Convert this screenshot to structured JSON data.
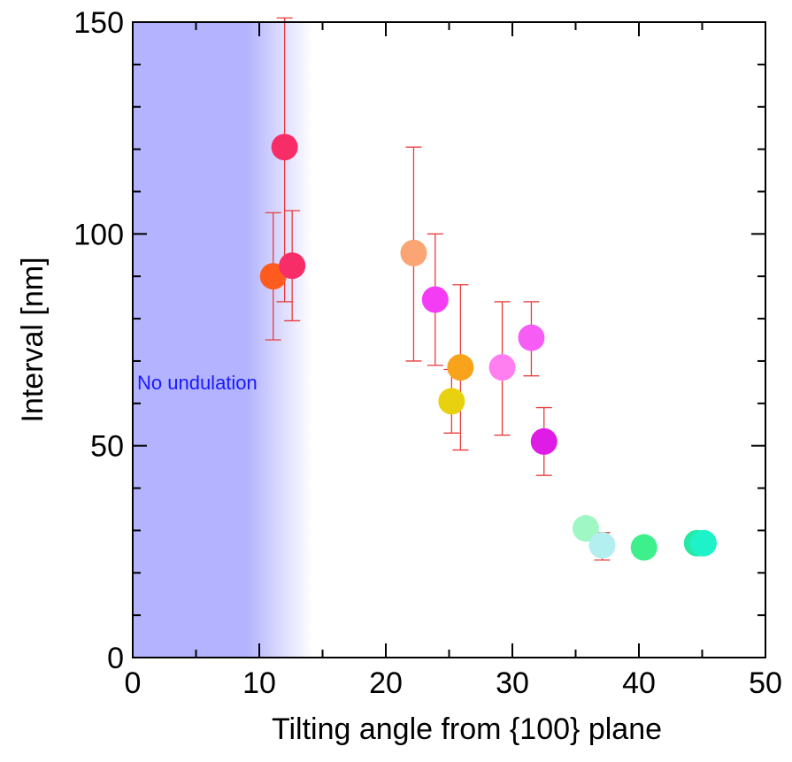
{
  "chart_data": {
    "type": "scatter",
    "title": "",
    "xlabel": "Tilting angle from {100} plane",
    "ylabel": "Interval   [nm]",
    "xlim": [
      0,
      50
    ],
    "ylim": [
      0,
      150
    ],
    "x_ticks": [
      0,
      10,
      20,
      30,
      40,
      50
    ],
    "y_ticks": [
      0,
      50,
      100,
      150
    ],
    "x_minor_step": 5,
    "y_minor_step": 10,
    "grid": false,
    "shaded_region": {
      "x_start": 0,
      "x_solid_end": 9,
      "x_fade_end": 14.2,
      "color": "#b3b3ff",
      "label": "No undulation",
      "label_color": "#1a1aff"
    },
    "error_bar_color": "#e83c3c",
    "points": [
      {
        "x": 11.1,
        "y": 90,
        "y_low": 75,
        "y_high": 105,
        "color": "#ff5b1e"
      },
      {
        "x": 12.0,
        "y": 120.5,
        "y_low": 84,
        "y_high": 151,
        "color": "#f72d68"
      },
      {
        "x": 12.6,
        "y": 92.5,
        "y_low": 79.5,
        "y_high": 105.5,
        "color": "#f72d68"
      },
      {
        "x": 22.2,
        "y": 95.5,
        "y_low": 70,
        "y_high": 120.5,
        "color": "#fba474"
      },
      {
        "x": 23.9,
        "y": 84.5,
        "y_low": 69,
        "y_high": 100,
        "color": "#f53cf5"
      },
      {
        "x": 25.2,
        "y": 60.5,
        "y_low": 53,
        "y_high": 68,
        "color": "#e8d20f"
      },
      {
        "x": 25.9,
        "y": 68.5,
        "y_low": 49,
        "y_high": 88,
        "color": "#f9a21c"
      },
      {
        "x": 29.2,
        "y": 68.5,
        "y_low": 52.5,
        "y_high": 84,
        "color": "#ff7ff0"
      },
      {
        "x": 31.5,
        "y": 75.5,
        "y_low": 66.5,
        "y_high": 84,
        "color": "#f55df5"
      },
      {
        "x": 32.5,
        "y": 51,
        "y_low": 43,
        "y_high": 59,
        "color": "#df1be6"
      },
      {
        "x": 35.8,
        "y": 30.5,
        "y_low": null,
        "y_high": null,
        "color": "#9ff7c3"
      },
      {
        "x": 37.1,
        "y": 26.5,
        "y_low": 23,
        "y_high": 29.5,
        "color": "#b3eef0"
      },
      {
        "x": 40.4,
        "y": 26,
        "y_low": null,
        "y_high": null,
        "color": "#3ef08c"
      },
      {
        "x": 44.6,
        "y": 27,
        "y_low": null,
        "y_high": null,
        "color": "#26eaa4"
      },
      {
        "x": 45.1,
        "y": 27,
        "y_low": null,
        "y_high": null,
        "color": "#1ef2c9"
      }
    ]
  }
}
